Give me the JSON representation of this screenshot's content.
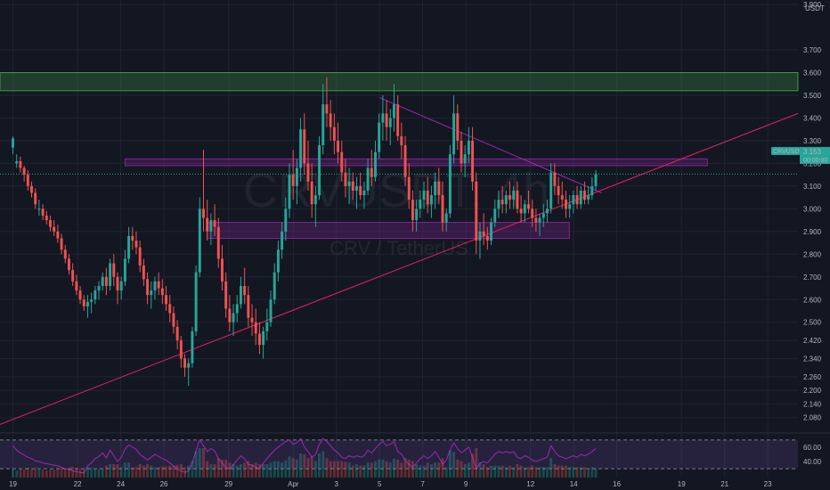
{
  "chart_data": {
    "type": "candlestick",
    "quote_currency": "USDT",
    "watermark": {
      "symbol": "CRVUSDT, 4h",
      "pair_name": "CRV / TetherUS"
    },
    "price_axis": {
      "ylim": [
        2.02,
        3.92
      ],
      "tick_labels": [
        "3.900",
        "3.700",
        "3.600",
        "3.500",
        "3.400",
        "3.300",
        "3.200",
        "3.100",
        "3.000",
        "2.900",
        "2.800",
        "2.700",
        "2.600",
        "2.500",
        "2.420",
        "2.340",
        "2.260",
        "2.200",
        "2.140",
        "2.080"
      ],
      "tick_values": [
        3.9,
        3.7,
        3.6,
        3.5,
        3.4,
        3.3,
        3.2,
        3.1,
        3.0,
        2.9,
        2.8,
        2.7,
        2.6,
        2.5,
        2.42,
        2.34,
        2.26,
        2.2,
        2.14,
        2.08
      ]
    },
    "time_axis": {
      "labels": [
        "19",
        "22",
        "24",
        "26",
        "29",
        "Apr",
        "3",
        "5",
        "7",
        "9",
        "12",
        "14",
        "16",
        "19",
        "21",
        "23"
      ],
      "day_index": [
        0,
        3,
        5,
        7,
        10,
        13,
        15,
        17,
        19,
        21,
        24,
        26,
        28,
        31,
        33,
        35
      ],
      "x_range_days": [
        -0.6,
        36.4
      ]
    },
    "last_price": {
      "label": "CRVUSDT",
      "value": "3.153",
      "countdown": "00:00:00",
      "price": 3.153
    },
    "zones": [
      {
        "name": "resistance-zone",
        "color": "#4caf50",
        "y_range": [
          3.52,
          3.6
        ]
      },
      {
        "name": "upper-range-zone",
        "color": "#9c27b0",
        "y_range": [
          3.19,
          3.22
        ],
        "x_range_days": [
          5.2,
          32.2
        ]
      },
      {
        "name": "lower-range-zone",
        "color": "#9c27b0",
        "y_range": [
          2.87,
          2.94
        ],
        "x_range_days": [
          9.0,
          25.8
        ]
      }
    ],
    "trendlines": [
      {
        "name": "ascending-support",
        "color": "#e91e63",
        "points": [
          [
            -0.6,
            2.05
          ],
          [
            36.4,
            3.42
          ]
        ]
      },
      {
        "name": "descending-resistance",
        "color": "#9c27b0",
        "points": [
          [
            17.0,
            3.49
          ],
          [
            27.3,
            3.07
          ]
        ]
      }
    ],
    "candles": [
      [
        3.27,
        3.32,
        3.24,
        3.31
      ],
      [
        3.2,
        3.24,
        3.18,
        3.21
      ],
      [
        3.21,
        3.23,
        3.16,
        3.18
      ],
      [
        3.18,
        3.19,
        3.12,
        3.15
      ],
      [
        3.15,
        3.17,
        3.08,
        3.1
      ],
      [
        3.1,
        3.12,
        3.05,
        3.07
      ],
      [
        3.07,
        3.09,
        3.0,
        3.02
      ],
      [
        3.0,
        3.04,
        2.97,
        3.0
      ],
      [
        3.0,
        3.02,
        2.95,
        2.97
      ],
      [
        2.97,
        2.99,
        2.93,
        2.95
      ],
      [
        2.95,
        2.97,
        2.9,
        2.92
      ],
      [
        2.92,
        2.95,
        2.88,
        2.9
      ],
      [
        2.9,
        2.93,
        2.85,
        2.87
      ],
      [
        2.87,
        2.89,
        2.8,
        2.82
      ],
      [
        2.82,
        2.84,
        2.76,
        2.78
      ],
      [
        2.78,
        2.8,
        2.71,
        2.73
      ],
      [
        2.73,
        2.76,
        2.66,
        2.68
      ],
      [
        2.68,
        2.71,
        2.62,
        2.64
      ],
      [
        2.64,
        2.66,
        2.58,
        2.6
      ],
      [
        2.6,
        2.62,
        2.55,
        2.57
      ],
      [
        2.57,
        2.62,
        2.52,
        2.59
      ],
      [
        2.59,
        2.63,
        2.54,
        2.6
      ],
      [
        2.6,
        2.66,
        2.58,
        2.64
      ],
      [
        2.64,
        2.68,
        2.6,
        2.66
      ],
      [
        2.66,
        2.72,
        2.64,
        2.7
      ],
      [
        2.7,
        2.74,
        2.62,
        2.66
      ],
      [
        2.66,
        2.78,
        2.64,
        2.76
      ],
      [
        2.76,
        2.8,
        2.66,
        2.7
      ],
      [
        2.7,
        2.72,
        2.58,
        2.64
      ],
      [
        2.64,
        2.7,
        2.6,
        2.68
      ],
      [
        2.68,
        2.82,
        2.66,
        2.78
      ],
      [
        2.78,
        2.92,
        2.76,
        2.88
      ],
      [
        2.88,
        2.92,
        2.82,
        2.86
      ],
      [
        2.86,
        2.9,
        2.8,
        2.83
      ],
      [
        2.83,
        2.86,
        2.72,
        2.75
      ],
      [
        2.75,
        2.78,
        2.66,
        2.69
      ],
      [
        2.69,
        2.72,
        2.58,
        2.62
      ],
      [
        2.62,
        2.68,
        2.56,
        2.64
      ],
      [
        2.64,
        2.7,
        2.6,
        2.68
      ],
      [
        2.68,
        2.72,
        2.62,
        2.65
      ],
      [
        2.65,
        2.69,
        2.58,
        2.62
      ],
      [
        2.62,
        2.66,
        2.55,
        2.58
      ],
      [
        2.58,
        2.62,
        2.5,
        2.54
      ],
      [
        2.54,
        2.57,
        2.45,
        2.48
      ],
      [
        2.48,
        2.51,
        2.38,
        2.42
      ],
      [
        2.42,
        2.44,
        2.3,
        2.34
      ],
      [
        2.34,
        2.36,
        2.26,
        2.3
      ],
      [
        2.3,
        2.34,
        2.22,
        2.32
      ],
      [
        2.32,
        2.48,
        2.3,
        2.46
      ],
      [
        2.46,
        2.75,
        2.44,
        2.72
      ],
      [
        2.72,
        3.05,
        2.7,
        3.0
      ],
      [
        3.0,
        3.26,
        2.9,
        2.96
      ],
      [
        2.96,
        3.04,
        2.86,
        2.9
      ],
      [
        2.9,
        2.98,
        2.84,
        2.95
      ],
      [
        2.95,
        3.02,
        2.88,
        2.92
      ],
      [
        2.92,
        2.96,
        2.74,
        2.78
      ],
      [
        2.78,
        2.84,
        2.64,
        2.68
      ],
      [
        2.68,
        2.72,
        2.52,
        2.56
      ],
      [
        2.56,
        2.62,
        2.46,
        2.5
      ],
      [
        2.5,
        2.58,
        2.44,
        2.54
      ],
      [
        2.54,
        2.62,
        2.5,
        2.58
      ],
      [
        2.58,
        2.7,
        2.56,
        2.66
      ],
      [
        2.66,
        2.74,
        2.58,
        2.62
      ],
      [
        2.62,
        2.66,
        2.48,
        2.52
      ],
      [
        2.52,
        2.58,
        2.44,
        2.5
      ],
      [
        2.5,
        2.56,
        2.4,
        2.45
      ],
      [
        2.45,
        2.5,
        2.36,
        2.4
      ],
      [
        2.4,
        2.48,
        2.34,
        2.46
      ],
      [
        2.46,
        2.56,
        2.42,
        2.5
      ],
      [
        2.5,
        2.64,
        2.48,
        2.6
      ],
      [
        2.6,
        2.76,
        2.58,
        2.72
      ],
      [
        2.72,
        2.86,
        2.68,
        2.82
      ],
      [
        2.82,
        2.94,
        2.78,
        2.9
      ],
      [
        2.9,
        3.05,
        2.86,
        3.0
      ],
      [
        3.0,
        3.2,
        2.96,
        3.15
      ],
      [
        3.15,
        3.26,
        3.04,
        3.1
      ],
      [
        3.1,
        3.22,
        3.02,
        3.18
      ],
      [
        3.18,
        3.4,
        3.12,
        3.35
      ],
      [
        3.35,
        3.42,
        3.15,
        3.2
      ],
      [
        3.2,
        3.3,
        3.08,
        3.12
      ],
      [
        3.12,
        3.2,
        2.96,
        3.02
      ],
      [
        3.02,
        3.1,
        2.92,
        3.06
      ],
      [
        3.06,
        3.32,
        3.04,
        3.28
      ],
      [
        3.28,
        3.55,
        3.24,
        3.46
      ],
      [
        3.46,
        3.58,
        3.36,
        3.42
      ],
      [
        3.42,
        3.48,
        3.3,
        3.36
      ],
      [
        3.36,
        3.42,
        3.24,
        3.3
      ],
      [
        3.3,
        3.38,
        3.2,
        3.25
      ],
      [
        3.25,
        3.3,
        3.12,
        3.16
      ],
      [
        3.16,
        3.22,
        3.05,
        3.1
      ],
      [
        3.1,
        3.18,
        3.02,
        3.12
      ],
      [
        3.12,
        3.16,
        3.04,
        3.08
      ],
      [
        3.08,
        3.14,
        3.0,
        3.1
      ],
      [
        3.1,
        3.16,
        3.04,
        3.06
      ],
      [
        3.06,
        3.12,
        3.0,
        3.08
      ],
      [
        3.08,
        3.22,
        3.06,
        3.18
      ],
      [
        3.18,
        3.26,
        3.1,
        3.14
      ],
      [
        3.14,
        3.3,
        3.12,
        3.25
      ],
      [
        3.25,
        3.42,
        3.22,
        3.38
      ],
      [
        3.38,
        3.5,
        3.3,
        3.42
      ],
      [
        3.42,
        3.48,
        3.3,
        3.36
      ],
      [
        3.36,
        3.44,
        3.28,
        3.4
      ],
      [
        3.4,
        3.55,
        3.34,
        3.46
      ],
      [
        3.46,
        3.5,
        3.3,
        3.32
      ],
      [
        3.32,
        3.38,
        3.22,
        3.28
      ],
      [
        3.28,
        3.32,
        3.1,
        3.14
      ],
      [
        3.14,
        3.2,
        3.0,
        3.04
      ],
      [
        3.04,
        3.08,
        2.9,
        2.95
      ],
      [
        2.95,
        3.04,
        2.9,
        3.0
      ],
      [
        3.0,
        3.08,
        2.96,
        3.04
      ],
      [
        3.04,
        3.12,
        3.0,
        3.08
      ],
      [
        3.08,
        3.14,
        2.98,
        3.02
      ],
      [
        3.02,
        3.1,
        2.96,
        3.06
      ],
      [
        3.06,
        3.16,
        3.0,
        3.12
      ],
      [
        3.12,
        3.18,
        3.02,
        3.06
      ],
      [
        3.06,
        3.12,
        2.9,
        2.94
      ],
      [
        2.94,
        3.0,
        2.9,
        2.98
      ],
      [
        2.98,
        3.28,
        2.96,
        3.24
      ],
      [
        3.24,
        3.5,
        3.2,
        3.42
      ],
      [
        3.42,
        3.46,
        3.26,
        3.3
      ],
      [
        3.3,
        3.34,
        3.16,
        3.2
      ],
      [
        3.2,
        3.28,
        3.14,
        3.24
      ],
      [
        3.24,
        3.36,
        3.2,
        3.3
      ],
      [
        3.3,
        3.36,
        3.08,
        3.12
      ],
      [
        3.12,
        3.16,
        2.8,
        2.86
      ],
      [
        2.86,
        2.94,
        2.78,
        2.9
      ],
      [
        2.9,
        2.98,
        2.84,
        2.88
      ],
      [
        2.88,
        2.92,
        2.82,
        2.86
      ],
      [
        2.86,
        2.96,
        2.84,
        2.94
      ],
      [
        2.94,
        3.04,
        2.92,
        3.0
      ],
      [
        3.0,
        3.08,
        2.96,
        3.04
      ],
      [
        3.04,
        3.1,
        2.98,
        3.02
      ],
      [
        3.02,
        3.08,
        2.98,
        3.06
      ],
      [
        3.06,
        3.12,
        3.0,
        3.04
      ],
      [
        3.04,
        3.1,
        3.0,
        3.08
      ],
      [
        3.08,
        3.12,
        2.98,
        3.0
      ],
      [
        3.0,
        3.06,
        2.94,
        2.98
      ],
      [
        2.98,
        3.04,
        2.94,
        3.02
      ],
      [
        3.02,
        3.08,
        2.98,
        3.0
      ],
      [
        3.0,
        3.04,
        2.92,
        2.96
      ],
      [
        2.96,
        3.0,
        2.9,
        2.94
      ],
      [
        2.94,
        2.98,
        2.88,
        2.96
      ],
      [
        2.96,
        3.02,
        2.92,
        2.98
      ],
      [
        2.98,
        3.04,
        2.94,
        3.0
      ],
      [
        3.0,
        3.2,
        2.98,
        3.16
      ],
      [
        3.16,
        3.2,
        3.06,
        3.1
      ],
      [
        3.1,
        3.14,
        3.02,
        3.06
      ],
      [
        3.06,
        3.12,
        3.0,
        3.04
      ],
      [
        3.04,
        3.08,
        2.96,
        3.0
      ],
      [
        3.0,
        3.06,
        2.96,
        3.02
      ],
      [
        3.02,
        3.08,
        2.98,
        3.06
      ],
      [
        3.06,
        3.1,
        3.0,
        3.02
      ],
      [
        3.02,
        3.1,
        3.0,
        3.08
      ],
      [
        3.08,
        3.12,
        3.02,
        3.04
      ],
      [
        3.04,
        3.1,
        3.02,
        3.06
      ],
      [
        3.06,
        3.14,
        3.04,
        3.1
      ],
      [
        3.1,
        3.17,
        3.08,
        3.153
      ]
    ],
    "rsi": {
      "levels": [
        70,
        30
      ],
      "tick_labels": [
        "60.00",
        "40.00"
      ],
      "tick_values": [
        60,
        40
      ],
      "ylim": [
        24,
        76
      ],
      "values": [
        62,
        56,
        52,
        49,
        46,
        44,
        41,
        40,
        38,
        37,
        36,
        35,
        34,
        32,
        30,
        29,
        27,
        26,
        25,
        24,
        34,
        38,
        44,
        47,
        52,
        45,
        56,
        48,
        40,
        46,
        57,
        63,
        60,
        57,
        50,
        46,
        42,
        46,
        50,
        47,
        44,
        42,
        38,
        34,
        30,
        27,
        25,
        27,
        38,
        55,
        70,
        62,
        54,
        58,
        55,
        44,
        38,
        32,
        30,
        36,
        42,
        48,
        44,
        36,
        35,
        32,
        30,
        38,
        44,
        50,
        56,
        60,
        64,
        68,
        70,
        64,
        66,
        72,
        60,
        54,
        46,
        50,
        64,
        72,
        68,
        62,
        56,
        52,
        46,
        44,
        48,
        46,
        48,
        46,
        48,
        56,
        52,
        58,
        64,
        68,
        62,
        64,
        68,
        54,
        50,
        42,
        36,
        32,
        38,
        44,
        48,
        44,
        48,
        54,
        46,
        36,
        42,
        56,
        66,
        58,
        52,
        56,
        60,
        46,
        30,
        38,
        40,
        38,
        44,
        50,
        54,
        52,
        54,
        52,
        54,
        46,
        44,
        48,
        46,
        42,
        40,
        42,
        44,
        46,
        62,
        54,
        48,
        46,
        44,
        46,
        48,
        46,
        50,
        48,
        50,
        54,
        58
      ]
    },
    "volume_scale_max": 1.0
  }
}
